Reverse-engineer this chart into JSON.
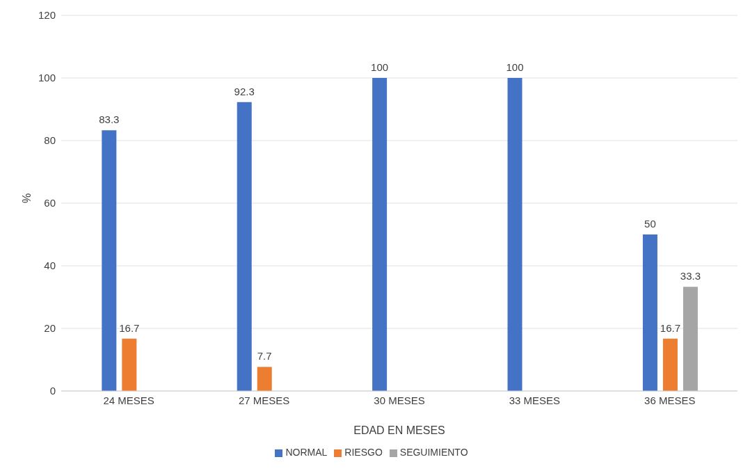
{
  "chart_data": {
    "type": "bar",
    "xlabel": "EDAD EN MESES",
    "ylabel": "%",
    "categories": [
      "24 MESES",
      "27 MESES",
      "30 MESES",
      "33 MESES",
      "36 MESES"
    ],
    "series": [
      {
        "name": "NORMAL",
        "color": "#4472c4",
        "values": [
          83.3,
          92.3,
          100,
          100,
          50
        ]
      },
      {
        "name": "RIESGO",
        "color": "#ed7d31",
        "values": [
          16.7,
          7.7,
          null,
          null,
          16.7
        ]
      },
      {
        "name": "SEGUIMIENTO",
        "color": "#a5a5a5",
        "values": [
          null,
          null,
          null,
          null,
          33.3
        ]
      }
    ],
    "ylim": [
      0,
      120
    ],
    "yticks": [
      0,
      20,
      40,
      60,
      80,
      100,
      120
    ],
    "grid": "y",
    "legend": "bottom",
    "data_labels": true
  }
}
